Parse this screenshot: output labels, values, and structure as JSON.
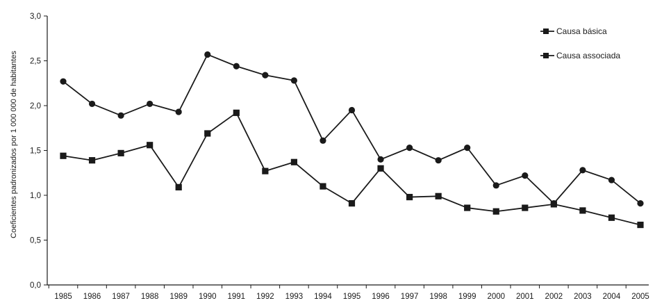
{
  "chart_data": {
    "type": "line",
    "title": "",
    "xlabel": "",
    "ylabel": "Coeficientes padronizados por 1 000 000 de habitantes",
    "ylim": [
      0,
      3.0
    ],
    "y_ticks": [
      "0,0",
      "0,5",
      "1,0",
      "1,5",
      "2,0",
      "2,5",
      "3,0"
    ],
    "categories": [
      "1985",
      "1986",
      "1987",
      "1988",
      "1989",
      "1990",
      "1991",
      "1992",
      "1993",
      "1994",
      "1995",
      "1996",
      "1997",
      "1998",
      "1999",
      "2000",
      "2001",
      "2002",
      "2003",
      "2004",
      "2005"
    ],
    "series": [
      {
        "name": "Causa básica",
        "marker": "circle",
        "color": "#1a1a1a",
        "values": [
          2.27,
          2.02,
          1.89,
          2.02,
          1.93,
          2.57,
          2.44,
          2.34,
          2.28,
          1.61,
          1.95,
          1.4,
          1.53,
          1.39,
          1.53,
          1.11,
          1.22,
          0.91,
          1.28,
          1.17,
          0.91
        ]
      },
      {
        "name": "Causa associada",
        "marker": "square",
        "color": "#1a1a1a",
        "values": [
          1.44,
          1.39,
          1.47,
          1.56,
          1.09,
          1.69,
          1.92,
          1.27,
          1.37,
          1.1,
          0.91,
          1.3,
          0.98,
          0.99,
          0.86,
          0.82,
          0.86,
          0.9,
          0.83,
          0.75,
          0.67
        ]
      }
    ],
    "legend": "top-right",
    "grid": false
  }
}
